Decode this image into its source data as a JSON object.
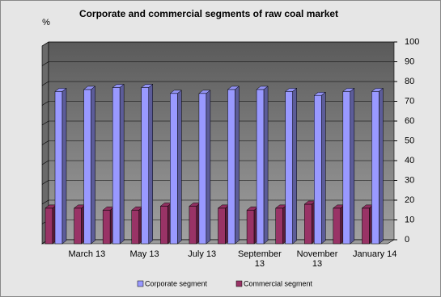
{
  "chart_data": {
    "type": "bar3d",
    "title": "Corporate and commercial segments of raw coal market",
    "y_label": "%",
    "categories": [
      null,
      "March 13",
      null,
      "May 13",
      null,
      "July 13",
      null,
      "September 13",
      null,
      "November 13",
      null,
      "January 14"
    ],
    "series": [
      {
        "name": "Corporate segment",
        "color": "#9999ff",
        "values": [
          77,
          78,
          79,
          79,
          76,
          76,
          78,
          78,
          77,
          75,
          77,
          77
        ]
      },
      {
        "name": "Commercial segment",
        "color": "#993366",
        "values": [
          18,
          18,
          17,
          17,
          19,
          19,
          18,
          17,
          18,
          20,
          18,
          18
        ]
      }
    ],
    "ylim": [
      0,
      100
    ],
    "yticks": [
      0,
      10,
      20,
      30,
      40,
      50,
      60,
      70,
      80,
      90,
      100
    ],
    "grid": true,
    "legend": "bottom"
  }
}
